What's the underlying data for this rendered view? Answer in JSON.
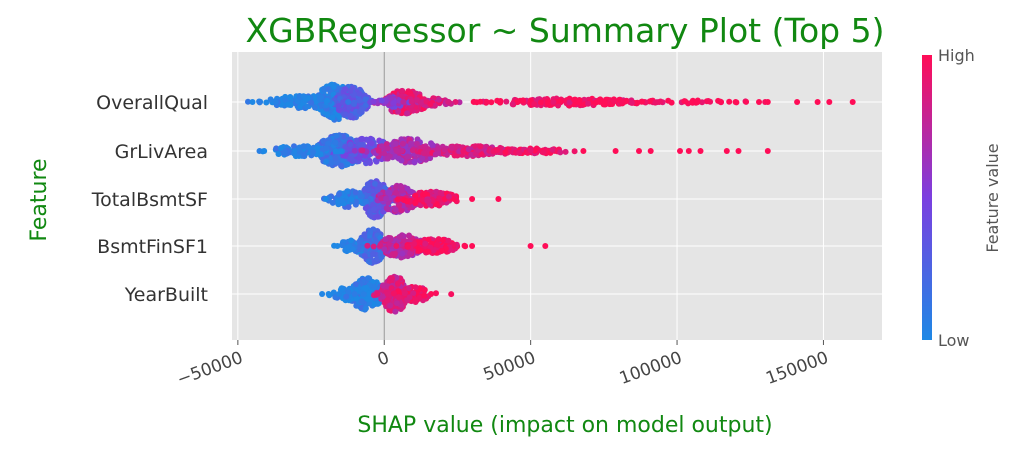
{
  "chart_data": {
    "type": "scatter",
    "subtype": "shap-beeswarm",
    "title": "XGBRegressor ~ Summary Plot (Top 5)",
    "xlabel": "SHAP value (impact on model output)",
    "ylabel": "Feature",
    "xlim": [
      -52000,
      170000
    ],
    "xticks": [
      {
        "value": -50000,
        "label": "−50000"
      },
      {
        "value": 0,
        "label": "0"
      },
      {
        "value": 50000,
        "label": "50000"
      },
      {
        "value": 100000,
        "label": "100000"
      },
      {
        "value": 150000,
        "label": "150000"
      }
    ],
    "grid": true,
    "colorbar": {
      "label": "Feature value",
      "high_label": "High",
      "low_label": "Low",
      "low_color": "#1e88e5",
      "high_color": "#ff0d57"
    },
    "background_color": "#e5e5e5",
    "features": [
      {
        "name": "OverallQual",
        "clusters": [
          {
            "center": -17000,
            "spread": 3500,
            "count": 230,
            "width": 0.34,
            "color_value": 0.05
          },
          {
            "center": -11000,
            "spread": 3000,
            "count": 200,
            "width": 0.3,
            "color_value": 0.3
          },
          {
            "center": -28000,
            "spread": 6500,
            "count": 90,
            "width": 0.12,
            "color_value": 0.02
          },
          {
            "center": 7000,
            "spread": 4500,
            "count": 150,
            "width": 0.22,
            "color_value": 0.88
          },
          {
            "center": 2500,
            "spread": 2500,
            "count": 40,
            "width": 0.1,
            "color_value": 0.55
          },
          {
            "center": 17000,
            "spread": 4000,
            "count": 40,
            "width": 0.08,
            "color_value": 0.85
          },
          {
            "center": 62000,
            "spread": 14000,
            "count": 170,
            "width": 0.07,
            "color_value": 0.97
          },
          {
            "center": 100000,
            "spread": 14000,
            "count": 40,
            "width": 0.03,
            "color_value": 1.0
          }
        ],
        "extremes": [
          -45000,
          -37000,
          22000,
          35000,
          115000,
          120000,
          128000,
          131000,
          141000,
          148000,
          152000,
          160000
        ],
        "extremes_color": [
          0.0,
          0.05,
          0.85,
          0.98,
          1.0,
          1.0,
          1.0,
          1.0,
          1.0,
          1.0,
          1.0,
          1.0
        ]
      },
      {
        "name": "GrLivArea",
        "clusters": [
          {
            "center": -15000,
            "spread": 4500,
            "count": 230,
            "width": 0.3,
            "color_value": 0.15
          },
          {
            "center": -6000,
            "spread": 5000,
            "count": 140,
            "width": 0.24,
            "color_value": 0.4
          },
          {
            "center": -28000,
            "spread": 6000,
            "count": 80,
            "width": 0.1,
            "color_value": 0.03
          },
          {
            "center": 8000,
            "spread": 6000,
            "count": 170,
            "width": 0.24,
            "color_value": 0.7
          },
          {
            "center": 28000,
            "spread": 9000,
            "count": 130,
            "width": 0.1,
            "color_value": 0.85
          },
          {
            "center": 50000,
            "spread": 7000,
            "count": 70,
            "width": 0.05,
            "color_value": 0.97
          }
        ],
        "extremes": [
          -41000,
          68000,
          79000,
          87000,
          91000,
          101000,
          104000,
          108000,
          117000,
          121000,
          131000
        ],
        "extremes_color": [
          0.0,
          1.0,
          1.0,
          1.0,
          1.0,
          1.0,
          1.0,
          1.0,
          1.0,
          1.0,
          1.0
        ]
      },
      {
        "name": "TotalBsmtSF",
        "clusters": [
          {
            "center": -3000,
            "spread": 2500,
            "count": 200,
            "width": 0.36,
            "color_value": 0.3
          },
          {
            "center": -12000,
            "spread": 3500,
            "count": 80,
            "width": 0.16,
            "color_value": 0.1
          },
          {
            "center": 5000,
            "spread": 3500,
            "count": 150,
            "width": 0.26,
            "color_value": 0.7
          },
          {
            "center": 16000,
            "spread": 5000,
            "count": 110,
            "width": 0.14,
            "color_value": 0.93
          }
        ],
        "extremes": [
          -20000,
          30000,
          39000
        ],
        "extremes_color": [
          0.0,
          1.0,
          1.0
        ]
      },
      {
        "name": "BsmtFinSF1",
        "clusters": [
          {
            "center": -4000,
            "spread": 2500,
            "count": 190,
            "width": 0.32,
            "color_value": 0.2
          },
          {
            "center": -10000,
            "spread": 3000,
            "count": 60,
            "width": 0.12,
            "color_value": 0.08
          },
          {
            "center": 6000,
            "spread": 4000,
            "count": 130,
            "width": 0.22,
            "color_value": 0.75
          },
          {
            "center": 17000,
            "spread": 4500,
            "count": 110,
            "width": 0.14,
            "color_value": 0.96
          }
        ],
        "extremes": [
          -16000,
          30000,
          50000,
          55000
        ],
        "extremes_color": [
          0.0,
          1.0,
          1.0,
          1.0
        ]
      },
      {
        "name": "YearBuilt",
        "clusters": [
          {
            "center": -6000,
            "spread": 3500,
            "count": 170,
            "width": 0.3,
            "color_value": 0.05
          },
          {
            "center": -13000,
            "spread": 3000,
            "count": 60,
            "width": 0.12,
            "color_value": 0.02
          },
          {
            "center": 3500,
            "spread": 2500,
            "count": 190,
            "width": 0.34,
            "color_value": 0.82
          },
          {
            "center": 10000,
            "spread": 3000,
            "count": 80,
            "width": 0.16,
            "color_value": 0.95
          }
        ],
        "extremes": [
          -19000,
          16000
        ],
        "extremes_color": [
          0.0,
          1.0
        ]
      }
    ]
  }
}
